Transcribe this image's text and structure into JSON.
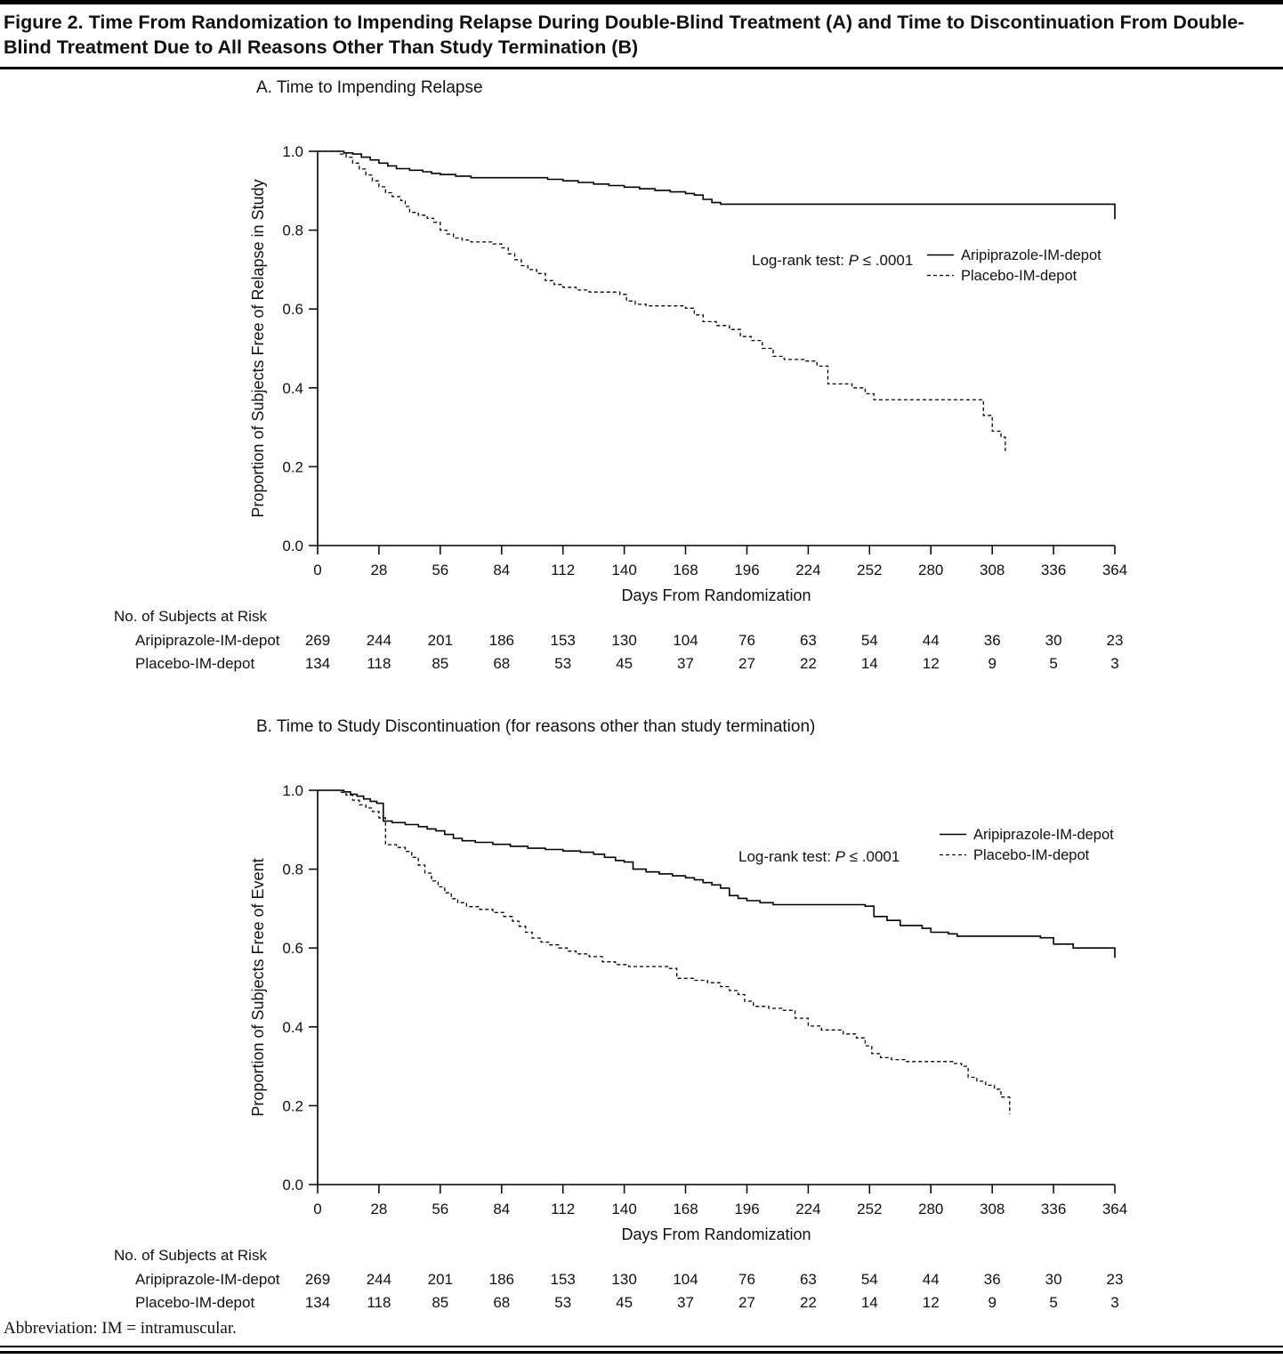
{
  "figure": {
    "title": "Figure 2. Time From Randomization to Impending Relapse During Double-Blind Treatment (A) and Time to Discontinuation From Double-Blind Treatment Due to All Reasons Other Than Study Termination (B)",
    "abbreviation_note": "Abbreviation: IM = intramuscular."
  },
  "chart_data": [
    {
      "type": "line",
      "step": true,
      "panel_label": "A. Time to Impending Relapse",
      "xlabel": "Days From Randomization",
      "ylabel": "Proportion of Subjects Free of Relapse in Study",
      "xlim": [
        0,
        364
      ],
      "ylim": [
        0,
        1
      ],
      "xticks": [
        0,
        28,
        56,
        84,
        112,
        140,
        168,
        196,
        224,
        252,
        280,
        308,
        336,
        364
      ],
      "yticks": [
        0,
        0.2,
        0.4,
        0.6,
        0.8,
        1
      ],
      "grid": false,
      "legend_position": "inside-right",
      "annotation": {
        "pre": "Log-rank test: ",
        "italic": "P",
        "post": " ≤ .0001"
      },
      "legend": [
        {
          "name": "Aripiprazole-IM-depot",
          "style": "solid"
        },
        {
          "name": "Placebo-IM-depot",
          "style": "dashed"
        }
      ],
      "series": [
        {
          "name": "Aripiprazole-IM-depot",
          "style": "solid",
          "points": [
            [
              0,
              1
            ],
            [
              12,
              0.996
            ],
            [
              16,
              0.993
            ],
            [
              20,
              0.985
            ],
            [
              24,
              0.978
            ],
            [
              28,
              0.97
            ],
            [
              32,
              0.963
            ],
            [
              36,
              0.956
            ],
            [
              42,
              0.952
            ],
            [
              48,
              0.948
            ],
            [
              52,
              0.944
            ],
            [
              56,
              0.941
            ],
            [
              63,
              0.937
            ],
            [
              70,
              0.933
            ],
            [
              105,
              0.929
            ],
            [
              112,
              0.925
            ],
            [
              119,
              0.921
            ],
            [
              126,
              0.917
            ],
            [
              133,
              0.913
            ],
            [
              140,
              0.909
            ],
            [
              147,
              0.905
            ],
            [
              154,
              0.901
            ],
            [
              161,
              0.897
            ],
            [
              168,
              0.893
            ],
            [
              172,
              0.889
            ],
            [
              176,
              0.878
            ],
            [
              180,
              0.87
            ],
            [
              184,
              0.866
            ],
            [
              364,
              0.828
            ]
          ]
        },
        {
          "name": "Placebo-IM-depot",
          "style": "dashed",
          "points": [
            [
              0,
              1
            ],
            [
              10,
              0.993
            ],
            [
              13,
              0.985
            ],
            [
              16,
              0.97
            ],
            [
              19,
              0.955
            ],
            [
              22,
              0.94
            ],
            [
              25,
              0.925
            ],
            [
              28,
              0.91
            ],
            [
              31,
              0.895
            ],
            [
              34,
              0.885
            ],
            [
              38,
              0.875
            ],
            [
              40,
              0.86
            ],
            [
              42,
              0.845
            ],
            [
              46,
              0.838
            ],
            [
              50,
              0.83
            ],
            [
              53,
              0.82
            ],
            [
              56,
              0.8
            ],
            [
              59,
              0.79
            ],
            [
              62,
              0.78
            ],
            [
              66,
              0.775
            ],
            [
              70,
              0.77
            ],
            [
              80,
              0.765
            ],
            [
              84,
              0.755
            ],
            [
              87,
              0.74
            ],
            [
              90,
              0.725
            ],
            [
              93,
              0.71
            ],
            [
              96,
              0.7
            ],
            [
              100,
              0.69
            ],
            [
              104,
              0.672
            ],
            [
              108,
              0.662
            ],
            [
              112,
              0.655
            ],
            [
              118,
              0.648
            ],
            [
              124,
              0.643
            ],
            [
              138,
              0.637
            ],
            [
              141,
              0.62
            ],
            [
              145,
              0.612
            ],
            [
              150,
              0.608
            ],
            [
              168,
              0.602
            ],
            [
              172,
              0.585
            ],
            [
              176,
              0.568
            ],
            [
              182,
              0.558
            ],
            [
              188,
              0.548
            ],
            [
              193,
              0.53
            ],
            [
              198,
              0.52
            ],
            [
              203,
              0.5
            ],
            [
              208,
              0.48
            ],
            [
              213,
              0.472
            ],
            [
              222,
              0.468
            ],
            [
              228,
              0.455
            ],
            [
              233,
              0.41
            ],
            [
              244,
              0.4
            ],
            [
              250,
              0.385
            ],
            [
              254,
              0.37
            ],
            [
              304,
              0.33
            ],
            [
              308,
              0.29
            ],
            [
              312,
              0.275
            ],
            [
              314,
              0.24
            ]
          ]
        }
      ],
      "at_risk": {
        "header": "No. of Subjects at Risk",
        "rows": [
          {
            "label": "Aripiprazole-IM-depot",
            "values": [
              269,
              244,
              201,
              186,
              153,
              130,
              104,
              76,
              63,
              54,
              44,
              36,
              30,
              23
            ]
          },
          {
            "label": "Placebo-IM-depot",
            "values": [
              134,
              118,
              85,
              68,
              53,
              45,
              37,
              27,
              22,
              14,
              12,
              9,
              5,
              3
            ]
          }
        ]
      }
    },
    {
      "type": "line",
      "step": true,
      "panel_label": "B. Time to Study Discontinuation (for reasons other than study termination)",
      "xlabel": "Days From Randomization",
      "ylabel": "Proportion of Subjects Free of Event",
      "xlim": [
        0,
        364
      ],
      "ylim": [
        0,
        1
      ],
      "xticks": [
        0,
        28,
        56,
        84,
        112,
        140,
        168,
        196,
        224,
        252,
        280,
        308,
        336,
        364
      ],
      "yticks": [
        0,
        0.2,
        0.4,
        0.6,
        0.8,
        1
      ],
      "grid": false,
      "legend_position": "inside-right",
      "annotation": {
        "pre": "Log-rank test: ",
        "italic": "P",
        "post": " ≤ .0001"
      },
      "legend": [
        {
          "name": "Aripiprazole-IM-depot",
          "style": "solid"
        },
        {
          "name": "Placebo-IM-depot",
          "style": "dashed"
        }
      ],
      "series": [
        {
          "name": "Aripiprazole-IM-depot",
          "style": "solid",
          "points": [
            [
              0,
              1
            ],
            [
              12,
              0.996
            ],
            [
              15,
              0.99
            ],
            [
              18,
              0.985
            ],
            [
              21,
              0.978
            ],
            [
              24,
              0.972
            ],
            [
              27,
              0.967
            ],
            [
              30,
              0.922
            ],
            [
              34,
              0.918
            ],
            [
              40,
              0.913
            ],
            [
              46,
              0.908
            ],
            [
              50,
              0.902
            ],
            [
              54,
              0.897
            ],
            [
              58,
              0.888
            ],
            [
              62,
              0.878
            ],
            [
              66,
              0.872
            ],
            [
              72,
              0.868
            ],
            [
              80,
              0.863
            ],
            [
              88,
              0.858
            ],
            [
              96,
              0.853
            ],
            [
              104,
              0.85
            ],
            [
              112,
              0.846
            ],
            [
              120,
              0.843
            ],
            [
              126,
              0.838
            ],
            [
              131,
              0.83
            ],
            [
              136,
              0.822
            ],
            [
              140,
              0.818
            ],
            [
              144,
              0.8
            ],
            [
              150,
              0.793
            ],
            [
              156,
              0.788
            ],
            [
              162,
              0.783
            ],
            [
              168,
              0.778
            ],
            [
              172,
              0.773
            ],
            [
              176,
              0.766
            ],
            [
              180,
              0.76
            ],
            [
              184,
              0.752
            ],
            [
              188,
              0.733
            ],
            [
              192,
              0.726
            ],
            [
              196,
              0.72
            ],
            [
              202,
              0.715
            ],
            [
              208,
              0.71
            ],
            [
              250,
              0.706
            ],
            [
              254,
              0.68
            ],
            [
              260,
              0.67
            ],
            [
              266,
              0.657
            ],
            [
              276,
              0.65
            ],
            [
              280,
              0.64
            ],
            [
              288,
              0.636
            ],
            [
              292,
              0.63
            ],
            [
              330,
              0.626
            ],
            [
              336,
              0.61
            ],
            [
              345,
              0.6
            ],
            [
              364,
              0.575
            ]
          ]
        },
        {
          "name": "Placebo-IM-depot",
          "style": "dashed",
          "points": [
            [
              0,
              1
            ],
            [
              10,
              0.995
            ],
            [
              13,
              0.988
            ],
            [
              16,
              0.975
            ],
            [
              19,
              0.963
            ],
            [
              22,
              0.955
            ],
            [
              25,
              0.946
            ],
            [
              28,
              0.93
            ],
            [
              31,
              0.862
            ],
            [
              36,
              0.855
            ],
            [
              40,
              0.845
            ],
            [
              43,
              0.83
            ],
            [
              46,
              0.81
            ],
            [
              49,
              0.79
            ],
            [
              52,
              0.77
            ],
            [
              55,
              0.755
            ],
            [
              58,
              0.74
            ],
            [
              61,
              0.725
            ],
            [
              64,
              0.715
            ],
            [
              68,
              0.705
            ],
            [
              74,
              0.698
            ],
            [
              80,
              0.69
            ],
            [
              85,
              0.68
            ],
            [
              89,
              0.668
            ],
            [
              92,
              0.655
            ],
            [
              95,
              0.64
            ],
            [
              98,
              0.625
            ],
            [
              102,
              0.615
            ],
            [
              106,
              0.608
            ],
            [
              110,
              0.6
            ],
            [
              114,
              0.592
            ],
            [
              118,
              0.585
            ],
            [
              124,
              0.578
            ],
            [
              130,
              0.565
            ],
            [
              136,
              0.558
            ],
            [
              142,
              0.553
            ],
            [
              160,
              0.548
            ],
            [
              164,
              0.523
            ],
            [
              172,
              0.518
            ],
            [
              178,
              0.512
            ],
            [
              184,
              0.502
            ],
            [
              188,
              0.492
            ],
            [
              192,
              0.482
            ],
            [
              195,
              0.465
            ],
            [
              199,
              0.452
            ],
            [
              206,
              0.447
            ],
            [
              212,
              0.442
            ],
            [
              218,
              0.422
            ],
            [
              224,
              0.402
            ],
            [
              230,
              0.392
            ],
            [
              240,
              0.382
            ],
            [
              246,
              0.372
            ],
            [
              250,
              0.352
            ],
            [
              253,
              0.332
            ],
            [
              257,
              0.322
            ],
            [
              262,
              0.317
            ],
            [
              268,
              0.312
            ],
            [
              290,
              0.307
            ],
            [
              294,
              0.3
            ],
            [
              297,
              0.272
            ],
            [
              301,
              0.262
            ],
            [
              305,
              0.252
            ],
            [
              309,
              0.242
            ],
            [
              312,
              0.222
            ],
            [
              316,
              0.178
            ]
          ]
        }
      ],
      "at_risk": {
        "header": "No. of Subjects at Risk",
        "rows": [
          {
            "label": "Aripiprazole-IM-depot",
            "values": [
              269,
              244,
              201,
              186,
              153,
              130,
              104,
              76,
              63,
              54,
              44,
              36,
              30,
              23
            ]
          },
          {
            "label": "Placebo-IM-depot",
            "values": [
              134,
              118,
              85,
              68,
              53,
              45,
              37,
              27,
              22,
              14,
              12,
              9,
              5,
              3
            ]
          }
        ]
      }
    }
  ]
}
